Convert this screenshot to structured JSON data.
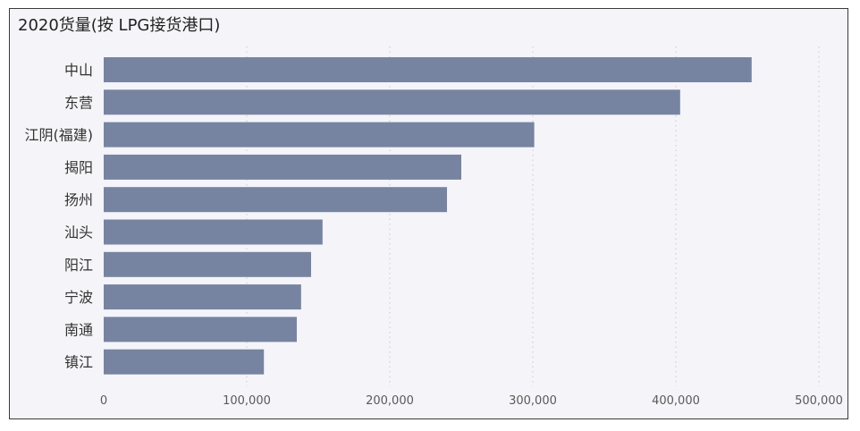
{
  "title": "2020货量(按 LPG接货港口)",
  "colors": {
    "bar": "#7684a2",
    "grid": "#c9c9cc",
    "tick_text": "#5a5a5a",
    "category_text": "#333333",
    "background": "#f5f4f8",
    "border": "#3a3a3a"
  },
  "chart_data": {
    "type": "bar",
    "orientation": "horizontal",
    "title": "2020货量(按 LPG接货港口)",
    "categories": [
      "中山",
      "东营",
      "江阴(福建)",
      "揭阳",
      "扬州",
      "汕头",
      "阳江",
      "宁波",
      "南通",
      "镇江"
    ],
    "values": [
      453000,
      403000,
      301000,
      250000,
      240000,
      153000,
      145000,
      138000,
      135000,
      112000
    ],
    "xlim": [
      0,
      500000
    ],
    "xticks": [
      0,
      100000,
      200000,
      300000,
      400000,
      500000
    ],
    "xtick_labels": [
      "0",
      "100,000",
      "200,000",
      "300,000",
      "400,000",
      "500,000"
    ],
    "grid": "vertical dotted",
    "legend": "none"
  }
}
